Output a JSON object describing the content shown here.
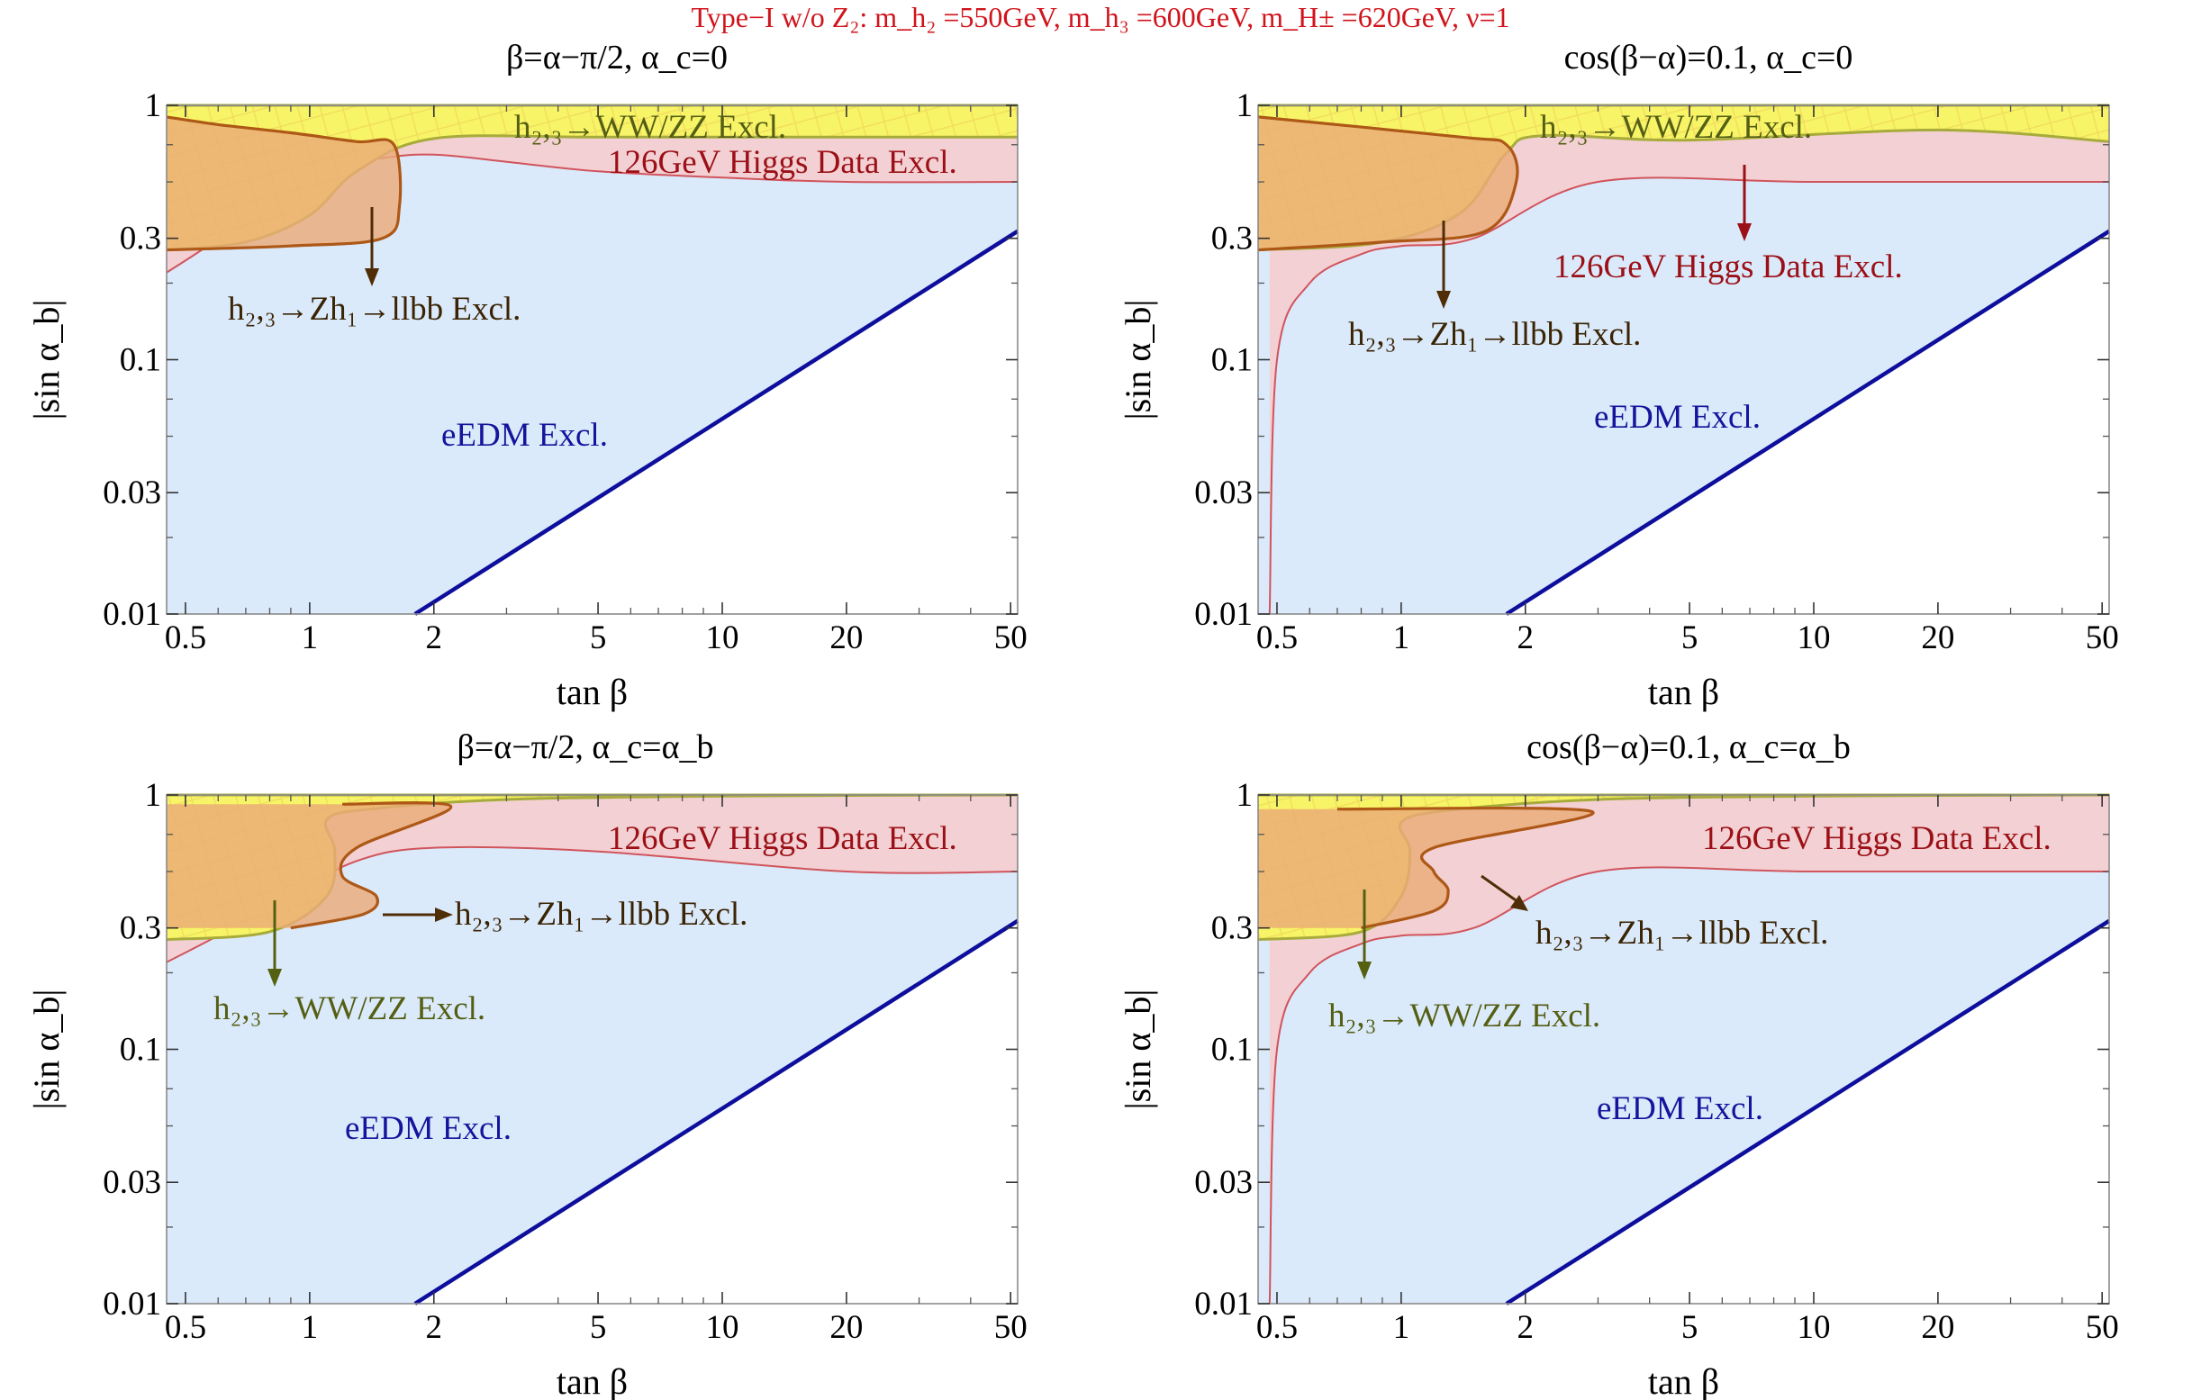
{
  "figure": {
    "suptitle": "Type−I w/o Z₂: m_h₂ =550GeV, m_h₃ =600GeV, m_H± =620GeV, ν=1"
  },
  "colors": {
    "edm_region": "#dbeafb",
    "higgs_region": "#f3d0d3",
    "higgs_line": "#d1545c",
    "ww_region": "#f8f467",
    "ww_line": "#a7ab3b",
    "zh_region": "#eaab78",
    "zh_line": "#ad5816",
    "edm_line": "#0d0e9c",
    "higgs_text": "#9b1016",
    "zh_text": "#3a2404",
    "ww_text": "#555f14",
    "edm_text": "#14149c",
    "arrow_zh": "#4f2d07",
    "arrow_higgs": "#9b1016",
    "arrow_ww": "#556010"
  },
  "chart_data": [
    {
      "type": "area",
      "title": "β=α−π/2, α_c=0",
      "xlabel": "tan β",
      "ylabel": "|sin α_b|",
      "xscale": "log",
      "yscale": "log",
      "xlim": [
        0.45,
        52
      ],
      "ylim": [
        0.01,
        1
      ],
      "xticks": [
        0.5,
        1,
        2,
        5,
        10,
        20,
        50
      ],
      "xtick_labels": [
        "0.5",
        "1",
        "2",
        "5",
        "10",
        "20",
        "50"
      ],
      "yticks": [
        0.01,
        0.03,
        0.1,
        0.3,
        1
      ],
      "ytick_labels": [
        "0.01",
        "0.03",
        "0.1",
        "0.3",
        "1"
      ],
      "regions": [
        {
          "name": "eEDM Excl.",
          "label": "eEDM Excl.",
          "boundary": {
            "x": [
              1.8,
              52
            ],
            "y": [
              0.01,
              0.32
            ]
          }
        },
        {
          "name": "126GeV Higgs Data Excl.",
          "label": "126GeV Higgs Data Excl.",
          "boundary": {
            "x": [
              0.45,
              0.6,
              0.8,
              1.0,
              1.5,
              2,
              3,
              5,
              10,
              20,
              52
            ],
            "y": [
              0.22,
              0.3,
              0.45,
              0.55,
              0.62,
              0.64,
              0.6,
              0.55,
              0.52,
              0.5,
              0.5
            ]
          }
        },
        {
          "name": "h2,3→WW/ZZ Excl.",
          "label": "h₂,₃→WW/ZZ Excl.",
          "boundary": {
            "x": [
              0.45,
              0.7,
              1.0,
              1.3,
              2,
              5,
              20,
              52
            ],
            "y": [
              0.27,
              0.29,
              0.37,
              0.55,
              0.74,
              0.75,
              0.75,
              0.75
            ]
          }
        },
        {
          "name": "h2,3→Zh1→llbb Excl.",
          "label": "h₂,₃→Zh₁→llbb Excl.",
          "boundary": {
            "x": [
              0.45,
              0.9,
              1.5,
              1.65,
              1.6,
              1.3,
              0.9,
              0.6,
              0.45
            ],
            "y": [
              0.27,
              0.28,
              0.3,
              0.4,
              0.7,
              0.72,
              0.78,
              0.84,
              0.9
            ]
          }
        }
      ]
    },
    {
      "type": "area",
      "title": "cos(β−α)=0.1, α_c=0",
      "xlabel": "tan β",
      "ylabel": "|sin α_b|",
      "xscale": "log",
      "yscale": "log",
      "xlim": [
        0.45,
        52
      ],
      "ylim": [
        0.01,
        1
      ],
      "xticks": [
        0.5,
        1,
        2,
        5,
        10,
        20,
        50
      ],
      "xtick_labels": [
        "0.5",
        "1",
        "2",
        "5",
        "10",
        "20",
        "50"
      ],
      "yticks": [
        0.01,
        0.03,
        0.1,
        0.3,
        1
      ],
      "ytick_labels": [
        "0.01",
        "0.03",
        "0.1",
        "0.3",
        "1"
      ],
      "regions": [
        {
          "name": "eEDM Excl.",
          "label": "eEDM Excl.",
          "boundary": {
            "x": [
              1.8,
              52
            ],
            "y": [
              0.01,
              0.32
            ]
          }
        },
        {
          "name": "126GeV Higgs Data Excl.",
          "label": "126GeV Higgs Data Excl.",
          "boundary": {
            "x": [
              0.48,
              0.5,
              0.6,
              0.8,
              1.0,
              1.5,
              3,
              10,
              52
            ],
            "y": [
              0.01,
              0.1,
              0.2,
              0.26,
              0.28,
              0.3,
              0.5,
              0.5,
              0.5
            ]
          }
        },
        {
          "name": "h2,3→WW/ZZ Excl.",
          "label": "h₂,₃→WW/ZZ Excl.",
          "boundary": {
            "x": [
              0.45,
              0.9,
              1.4,
              1.8,
              2.2,
              5,
              20,
              52
            ],
            "y": [
              0.27,
              0.29,
              0.38,
              0.65,
              0.76,
              0.73,
              0.8,
              0.72
            ]
          }
        },
        {
          "name": "h2,3→Zh1→llbb Excl.",
          "label": "h₂,₃→Zh₁→llbb Excl.",
          "boundary": {
            "x": [
              0.45,
              0.9,
              1.6,
              1.9,
              1.8,
              1.4,
              0.45
            ],
            "y": [
              0.27,
              0.29,
              0.32,
              0.5,
              0.7,
              0.75,
              0.9
            ]
          }
        }
      ]
    },
    {
      "type": "area",
      "title": "β=α−π/2, α_c=α_b",
      "xlabel": "tan β",
      "ylabel": "|sin α_b|",
      "xscale": "log",
      "yscale": "log",
      "xlim": [
        0.45,
        52
      ],
      "ylim": [
        0.01,
        1
      ],
      "xticks": [
        0.5,
        1,
        2,
        5,
        10,
        20,
        50
      ],
      "xtick_labels": [
        "0.5",
        "1",
        "2",
        "5",
        "10",
        "20",
        "50"
      ],
      "yticks": [
        0.01,
        0.03,
        0.1,
        0.3,
        1
      ],
      "ytick_labels": [
        "0.01",
        "0.03",
        "0.1",
        "0.3",
        "1"
      ],
      "regions": [
        {
          "name": "eEDM Excl.",
          "label": "eEDM Excl.",
          "boundary": {
            "x": [
              1.8,
              52
            ],
            "y": [
              0.01,
              0.32
            ]
          }
        },
        {
          "name": "126GeV Higgs Data Excl.",
          "label": "126GeV Higgs Data Excl.",
          "boundary": {
            "x": [
              0.45,
              0.6,
              0.9,
              1.3,
              2,
              5,
              20,
              52
            ],
            "y": [
              0.22,
              0.28,
              0.4,
              0.55,
              0.62,
              0.6,
              0.5,
              0.5
            ]
          }
        },
        {
          "name": "h2,3→WW/ZZ Excl.",
          "label": "h₂,₃→WW/ZZ Excl.",
          "boundary": {
            "x": [
              0.45,
              0.8,
              1.1,
              1.15,
              1.1,
              1.4,
              3,
              10,
              52
            ],
            "y": [
              0.27,
              0.29,
              0.4,
              0.6,
              0.8,
              0.88,
              0.96,
              0.99,
              1
            ]
          }
        },
        {
          "name": "h2,3→Zh1→llbb Excl.",
          "label": "h₂,₃→Zh₁→llbb Excl.",
          "boundary": {
            "x": [
              0.9,
              1.35,
              1.45,
              1.2,
              1.3,
              2.2,
              1.2
            ],
            "y": [
              0.3,
              0.34,
              0.4,
              0.48,
              0.62,
              0.9,
              0.92
            ]
          }
        }
      ]
    },
    {
      "type": "area",
      "title": "cos(β−α)=0.1, α_c=α_b",
      "xlabel": "tan β",
      "ylabel": "|sin α_b|",
      "xscale": "log",
      "yscale": "log",
      "xlim": [
        0.45,
        52
      ],
      "ylim": [
        0.01,
        1
      ],
      "xticks": [
        0.5,
        1,
        2,
        5,
        10,
        20,
        50
      ],
      "xtick_labels": [
        "0.5",
        "1",
        "2",
        "5",
        "10",
        "20",
        "50"
      ],
      "yticks": [
        0.01,
        0.03,
        0.1,
        0.3,
        1
      ],
      "ytick_labels": [
        "0.01",
        "0.03",
        "0.1",
        "0.3",
        "1"
      ],
      "regions": [
        {
          "name": "eEDM Excl.",
          "label": "eEDM Excl.",
          "boundary": {
            "x": [
              1.8,
              52
            ],
            "y": [
              0.01,
              0.32
            ]
          }
        },
        {
          "name": "126GeV Higgs Data Excl.",
          "label": "126GeV Higgs Data Excl.",
          "boundary": {
            "x": [
              0.48,
              0.5,
              0.6,
              0.8,
              1.0,
              1.5,
              3,
              10,
              52
            ],
            "y": [
              0.01,
              0.1,
              0.2,
              0.26,
              0.28,
              0.3,
              0.5,
              0.5,
              0.5
            ]
          }
        },
        {
          "name": "h2,3→WW/ZZ Excl.",
          "label": "h₂,₃→WW/ZZ Excl.",
          "boundary": {
            "x": [
              0.45,
              0.8,
              1.0,
              1.05,
              1.0,
              1.3,
              3,
              10,
              52
            ],
            "y": [
              0.27,
              0.29,
              0.4,
              0.6,
              0.78,
              0.87,
              0.96,
              0.99,
              1
            ]
          }
        },
        {
          "name": "h2,3→Zh1→llbb Excl.",
          "label": "h₂,₃→Zh₁→llbb Excl.",
          "boundary": {
            "x": [
              0.8,
              1.2,
              1.3,
              1.2,
              1.2,
              2.9,
              0.7
            ],
            "y": [
              0.3,
              0.35,
              0.42,
              0.5,
              0.62,
              0.86,
              0.88
            ]
          }
        }
      ]
    }
  ]
}
